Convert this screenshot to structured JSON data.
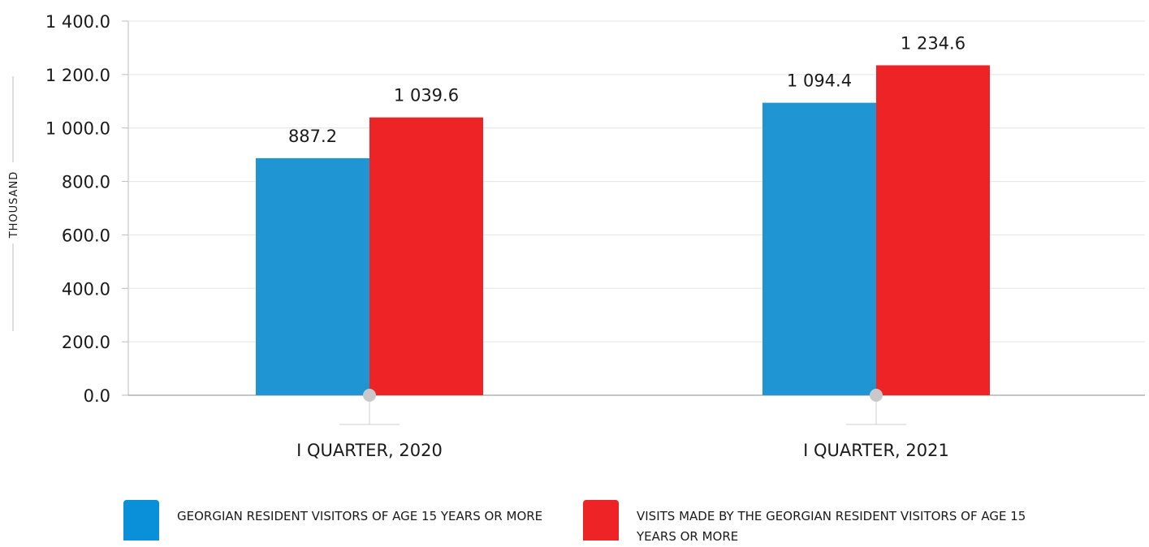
{
  "chart_data": {
    "type": "bar",
    "ylabel": "THOUSAND",
    "ylim": [
      0,
      1400
    ],
    "y_ticks": [
      "0.0",
      "200.0",
      "400.0",
      "600.0",
      "800.0",
      "1 000.0",
      "1 200.0",
      "1 400.0"
    ],
    "y_tick_values": [
      0,
      200,
      400,
      600,
      800,
      1000,
      1200,
      1400
    ],
    "categories": [
      "I QUARTER, 2020",
      "I QUARTER, 2021"
    ],
    "grid": true,
    "legend_position": "bottom",
    "series": [
      {
        "name": "GEORGIAN RESIDENT VISITORS OF AGE 15 YEARS OR MORE",
        "color": "#1f95d3",
        "values": [
          887.2,
          1094.4
        ],
        "labels": [
          "887.2",
          "1 094.4"
        ]
      },
      {
        "name": "VISITS MADE BY THE GEORGIAN RESIDENT VISITORS OF AGE 15 YEARS OR MORE",
        "color": "#ee2326",
        "values": [
          1039.6,
          1234.6
        ],
        "labels": [
          "1 039.6",
          "1 234.6"
        ]
      }
    ]
  }
}
